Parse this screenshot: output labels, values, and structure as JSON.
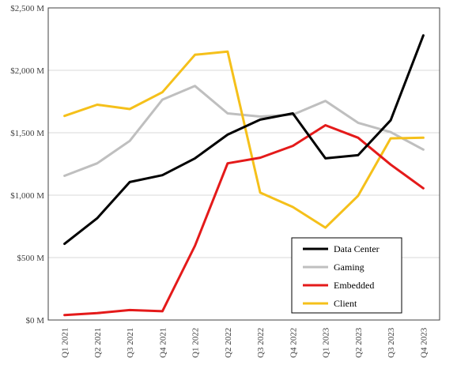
{
  "chart_data": {
    "type": "line",
    "title": "",
    "xlabel": "",
    "ylabel": "",
    "categories": [
      "Q1 2021",
      "Q2 2021",
      "Q3 2021",
      "Q4 2021",
      "Q1 2022",
      "Q2 2022",
      "Q3 2022",
      "Q4 2022",
      "Q1 2023",
      "Q2 2023",
      "Q3 2023",
      "Q4 2023"
    ],
    "ylim": [
      0,
      2500
    ],
    "yticks": [
      0,
      500,
      1000,
      1500,
      2000,
      2500
    ],
    "ytick_labels": [
      "$0 M",
      "$500 M",
      "$1,000 M",
      "$1,500 M",
      "$2,000 M",
      "$2,500 M"
    ],
    "grid": "horizontal",
    "legend_position": "bottom-right",
    "series": [
      {
        "name": "Data Center",
        "color": "#000000",
        "values": [
          610,
          815,
          1105,
          1160,
          1295,
          1485,
          1605,
          1655,
          1295,
          1320,
          1600,
          2280
        ]
      },
      {
        "name": "Gaming",
        "color": "#bfbfbf",
        "values": [
          1155,
          1255,
          1435,
          1765,
          1875,
          1655,
          1630,
          1645,
          1755,
          1580,
          1505,
          1365
        ]
      },
      {
        "name": "Embedded",
        "color": "#e41a1a",
        "values": [
          40,
          55,
          80,
          70,
          595,
          1255,
          1300,
          1395,
          1560,
          1460,
          1245,
          1055
        ]
      },
      {
        "name": "Client",
        "color": "#f5c01a",
        "values": [
          1635,
          1725,
          1690,
          1825,
          2125,
          2150,
          1020,
          905,
          740,
          995,
          1455,
          1460
        ]
      }
    ]
  }
}
